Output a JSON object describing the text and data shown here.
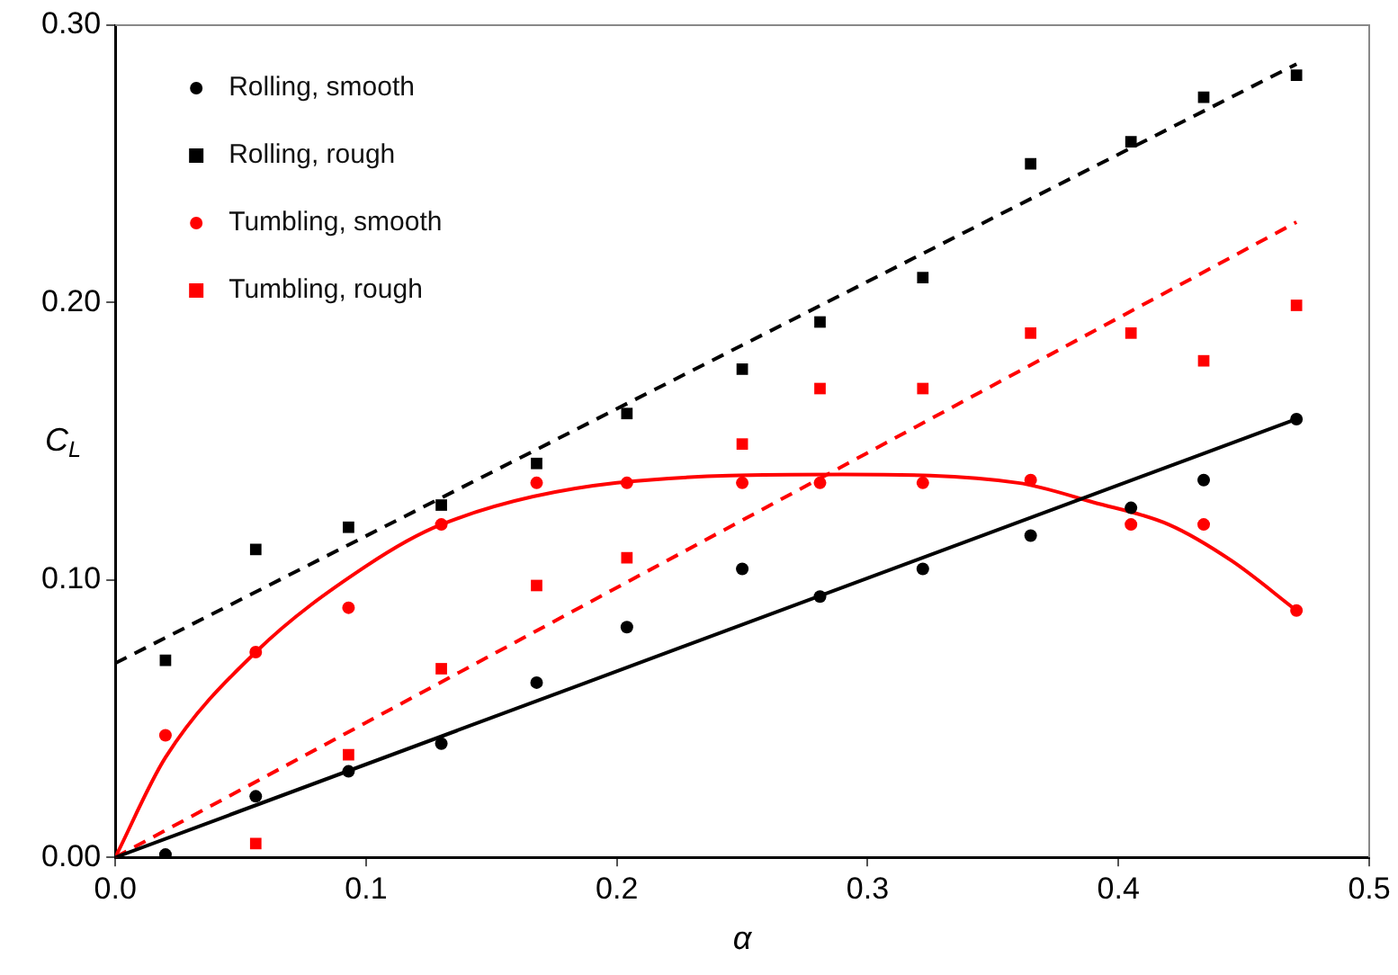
{
  "chart_data": {
    "type": "scatter",
    "xlabel": "α",
    "ylabel": "C$_{L}$",
    "xlim": [
      0,
      0.5
    ],
    "ylim": [
      0,
      0.3
    ],
    "xticks": [
      {
        "value": 0,
        "label": "0.0"
      },
      0.1,
      0.2,
      0.3,
      0.4,
      0.5
    ],
    "yticks": [
      {
        "value": 0,
        "label": "0.00"
      },
      {
        "value": 0.1,
        "label": "0.10"
      },
      {
        "value": 0.2,
        "label": "0.20"
      },
      {
        "value": 0.3,
        "label": "0.30"
      }
    ],
    "grid": false,
    "legend": "top left",
    "series": [
      {
        "name": "Rolling, smooth",
        "marker": "circle",
        "color": "#000000",
        "x": [
          0.02,
          0.056,
          0.093,
          0.13,
          0.168,
          0.204,
          0.25,
          0.281,
          0.322,
          0.365,
          0.405,
          0.434,
          0.471
        ],
        "values": [
          0.001,
          0.022,
          0.031,
          0.041,
          0.063,
          0.083,
          0.104,
          0.094,
          0.104,
          0.116,
          0.126,
          0.136,
          0.158
        ]
      },
      {
        "name": "Rolling, rough",
        "marker": "square",
        "color": "#000000",
        "x": [
          0.02,
          0.056,
          0.093,
          0.13,
          0.168,
          0.204,
          0.25,
          0.281,
          0.322,
          0.365,
          0.405,
          0.434,
          0.471
        ],
        "values": [
          0.071,
          0.111,
          0.119,
          0.127,
          0.142,
          0.16,
          0.176,
          0.193,
          0.209,
          0.25,
          0.258,
          0.274,
          0.282
        ]
      },
      {
        "name": "Tumbling, smooth",
        "marker": "circle",
        "color": "#ff0000",
        "x": [
          0.02,
          0.056,
          0.093,
          0.13,
          0.168,
          0.204,
          0.25,
          0.281,
          0.322,
          0.365,
          0.405,
          0.434,
          0.471
        ],
        "values": [
          0.044,
          0.074,
          0.09,
          0.12,
          0.135,
          0.135,
          0.135,
          0.135,
          0.135,
          0.136,
          0.12,
          0.12,
          0.089
        ]
      },
      {
        "name": "Tumbling, rough",
        "marker": "square",
        "color": "#ff0000",
        "x": [
          0.056,
          0.093,
          0.13,
          0.168,
          0.204,
          0.25,
          0.281,
          0.322,
          0.365,
          0.405,
          0.434,
          0.471
        ],
        "values": [
          0.005,
          0.037,
          0.068,
          0.098,
          0.108,
          0.149,
          0.169,
          0.169,
          0.189,
          0.189,
          0.179,
          0.199
        ]
      },
      {
        "type": "line",
        "marker": "none",
        "line_style": "solid",
        "color": "#000000",
        "x": [
          0,
          0.471
        ],
        "values": [
          0,
          0.158
        ]
      },
      {
        "type": "line",
        "marker": "none",
        "line_style": "dashed",
        "color": "#000000",
        "x": [
          0,
          0.471
        ],
        "values": [
          0.07,
          0.286
        ]
      },
      {
        "type": "line",
        "marker": "none",
        "line_style": "dashed",
        "color": "#ff0000",
        "x": [
          0,
          0.471
        ],
        "values": [
          0,
          0.229
        ]
      },
      {
        "type": "line",
        "marker": "none",
        "line_style": "solid",
        "color": "#ff0000",
        "x": [
          0,
          0.02,
          0.056,
          0.1,
          0.13,
          0.2,
          0.29,
          0.36,
          0.39,
          0.42,
          0.445,
          0.471
        ],
        "values": [
          0,
          0.036,
          0.074,
          0.105,
          0.12,
          0.135,
          0.138,
          0.135,
          0.128,
          0.12,
          0.107,
          0.089
        ]
      }
    ]
  }
}
